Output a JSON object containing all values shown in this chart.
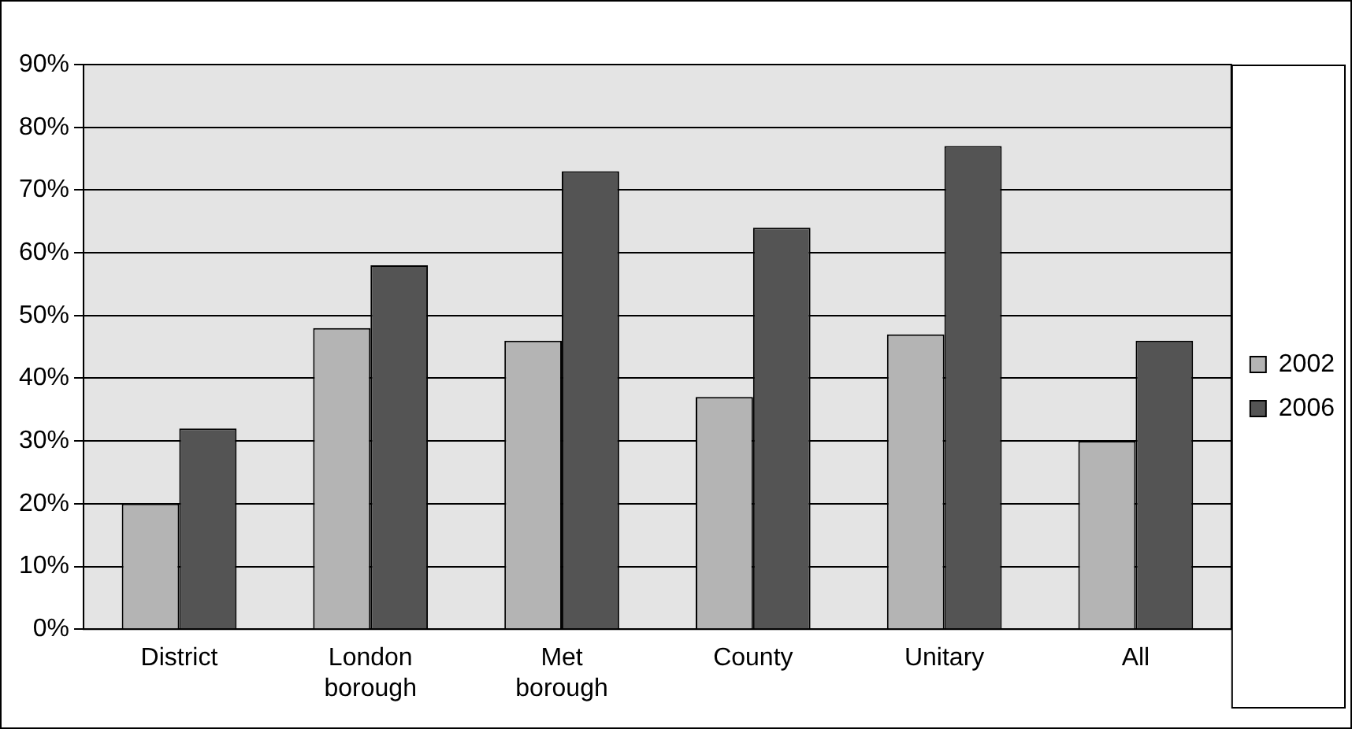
{
  "chart_data": {
    "type": "bar",
    "categories": [
      "District",
      "London borough",
      "Met borough",
      "County",
      "Unitary",
      "All"
    ],
    "series": [
      {
        "name": "2002",
        "color": "#b4b4b4",
        "values": [
          20,
          48,
          46,
          37,
          47,
          30
        ]
      },
      {
        "name": "2006",
        "color": "#545454",
        "values": [
          32,
          58,
          73,
          64,
          77,
          46
        ]
      }
    ],
    "ylim": [
      0,
      90
    ],
    "yticks": [
      {
        "value": 0,
        "label": "0%"
      },
      {
        "value": 10,
        "label": "10%"
      },
      {
        "value": 20,
        "label": "20%"
      },
      {
        "value": 30,
        "label": "30%"
      },
      {
        "value": 40,
        "label": "40%"
      },
      {
        "value": 50,
        "label": "50%"
      },
      {
        "value": 60,
        "label": "60%"
      },
      {
        "value": 70,
        "label": "70%"
      },
      {
        "value": 80,
        "label": "80%"
      },
      {
        "value": 90,
        "label": "90%"
      }
    ],
    "grid": "y",
    "legend": "right"
  }
}
